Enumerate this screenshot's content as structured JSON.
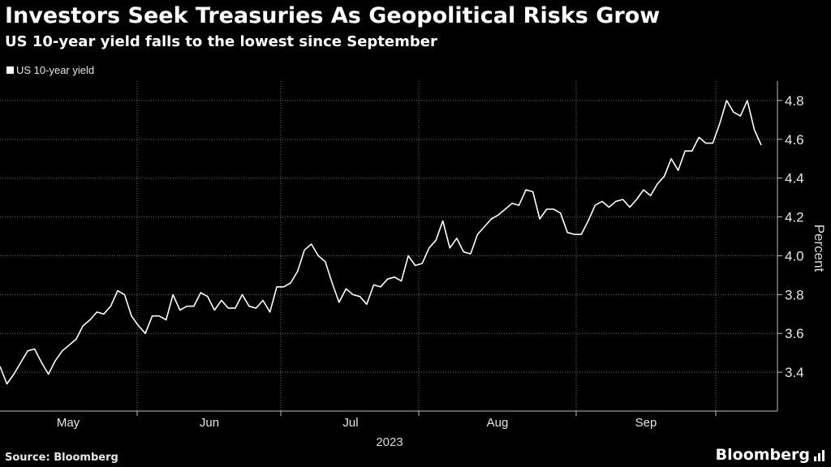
{
  "header": {
    "title": "Investors Seek Treasuries As Geopolitical Risks Grow",
    "subtitle": "US 10-year yield falls to the lowest since September"
  },
  "legend": {
    "label": "US 10-year yield"
  },
  "footer": {
    "source": "Source: Bloomberg",
    "brand": "Bloomberg"
  },
  "chart_data": {
    "type": "line",
    "title": "Investors Seek Treasuries As Geopolitical Risks Grow",
    "subtitle": "US 10-year yield falls to the lowest since September",
    "ylabel": "Percent",
    "xlabel": "2023",
    "ylim": [
      3.2,
      4.9
    ],
    "yticks": [
      3.4,
      3.6,
      3.8,
      4.0,
      4.2,
      4.4,
      4.6,
      4.8
    ],
    "ytick_labels": [
      "3.4",
      "3.6",
      "3.8",
      "4.0",
      "4.2",
      "4.4",
      "4.6",
      "4.8"
    ],
    "x_period_labels": [
      "May",
      "Jun",
      "Jul",
      "Aug",
      "Sep"
    ],
    "x_year_label": "2023",
    "grid": true,
    "legend_position": "top-left",
    "line_color": "#ffffff",
    "background": "#000000",
    "series": [
      {
        "name": "US 10-year yield",
        "values": [
          3.43,
          3.34,
          3.39,
          3.45,
          3.51,
          3.52,
          3.45,
          3.39,
          3.46,
          3.51,
          3.54,
          3.57,
          3.64,
          3.67,
          3.71,
          3.7,
          3.74,
          3.82,
          3.8,
          3.69,
          3.64,
          3.6,
          3.69,
          3.69,
          3.67,
          3.8,
          3.72,
          3.74,
          3.74,
          3.81,
          3.79,
          3.72,
          3.77,
          3.73,
          3.73,
          3.8,
          3.74,
          3.73,
          3.77,
          3.71,
          3.84,
          3.84,
          3.86,
          3.92,
          4.03,
          4.06,
          4.0,
          3.97,
          3.86,
          3.76,
          3.83,
          3.8,
          3.79,
          3.75,
          3.85,
          3.84,
          3.88,
          3.89,
          3.87,
          4.0,
          3.95,
          3.96,
          4.04,
          4.08,
          4.18,
          4.04,
          4.09,
          4.02,
          4.01,
          4.11,
          4.15,
          4.19,
          4.21,
          4.24,
          4.27,
          4.26,
          4.34,
          4.33,
          4.19,
          4.24,
          4.24,
          4.22,
          4.12,
          4.11,
          4.11,
          4.18,
          4.26,
          4.28,
          4.25,
          4.28,
          4.29,
          4.25,
          4.29,
          4.34,
          4.31,
          4.37,
          4.41,
          4.5,
          4.44,
          4.54,
          4.54,
          4.61,
          4.58,
          4.58,
          4.68,
          4.8,
          4.74,
          4.72,
          4.8,
          4.65,
          4.57
        ]
      }
    ]
  }
}
